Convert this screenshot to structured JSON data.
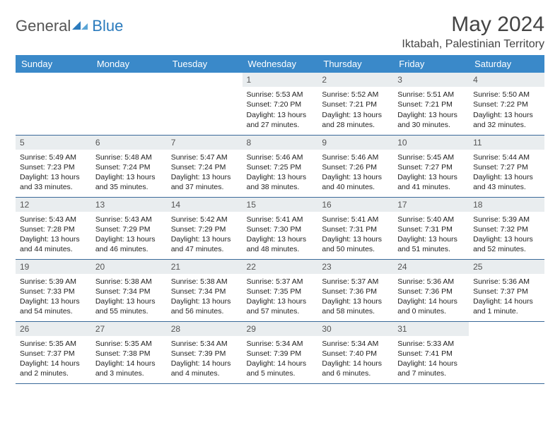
{
  "logo": {
    "general": "General",
    "blue": "Blue"
  },
  "title": "May 2024",
  "location": "Iktabah, Palestinian Territory",
  "day_headers": [
    "Sunday",
    "Monday",
    "Tuesday",
    "Wednesday",
    "Thursday",
    "Friday",
    "Saturday"
  ],
  "colors": {
    "header_bg": "#3a89c9",
    "daynum_bg": "#e9edef",
    "row_border": "#3a6a99",
    "logo_blue": "#2b7bbd",
    "logo_gray": "#555555"
  },
  "weeks": [
    [
      null,
      null,
      null,
      {
        "n": "1",
        "sr": "Sunrise: 5:53 AM",
        "ss": "Sunset: 7:20 PM",
        "d1": "Daylight: 13 hours",
        "d2": "and 27 minutes."
      },
      {
        "n": "2",
        "sr": "Sunrise: 5:52 AM",
        "ss": "Sunset: 7:21 PM",
        "d1": "Daylight: 13 hours",
        "d2": "and 28 minutes."
      },
      {
        "n": "3",
        "sr": "Sunrise: 5:51 AM",
        "ss": "Sunset: 7:21 PM",
        "d1": "Daylight: 13 hours",
        "d2": "and 30 minutes."
      },
      {
        "n": "4",
        "sr": "Sunrise: 5:50 AM",
        "ss": "Sunset: 7:22 PM",
        "d1": "Daylight: 13 hours",
        "d2": "and 32 minutes."
      }
    ],
    [
      {
        "n": "5",
        "sr": "Sunrise: 5:49 AM",
        "ss": "Sunset: 7:23 PM",
        "d1": "Daylight: 13 hours",
        "d2": "and 33 minutes."
      },
      {
        "n": "6",
        "sr": "Sunrise: 5:48 AM",
        "ss": "Sunset: 7:24 PM",
        "d1": "Daylight: 13 hours",
        "d2": "and 35 minutes."
      },
      {
        "n": "7",
        "sr": "Sunrise: 5:47 AM",
        "ss": "Sunset: 7:24 PM",
        "d1": "Daylight: 13 hours",
        "d2": "and 37 minutes."
      },
      {
        "n": "8",
        "sr": "Sunrise: 5:46 AM",
        "ss": "Sunset: 7:25 PM",
        "d1": "Daylight: 13 hours",
        "d2": "and 38 minutes."
      },
      {
        "n": "9",
        "sr": "Sunrise: 5:46 AM",
        "ss": "Sunset: 7:26 PM",
        "d1": "Daylight: 13 hours",
        "d2": "and 40 minutes."
      },
      {
        "n": "10",
        "sr": "Sunrise: 5:45 AM",
        "ss": "Sunset: 7:27 PM",
        "d1": "Daylight: 13 hours",
        "d2": "and 41 minutes."
      },
      {
        "n": "11",
        "sr": "Sunrise: 5:44 AM",
        "ss": "Sunset: 7:27 PM",
        "d1": "Daylight: 13 hours",
        "d2": "and 43 minutes."
      }
    ],
    [
      {
        "n": "12",
        "sr": "Sunrise: 5:43 AM",
        "ss": "Sunset: 7:28 PM",
        "d1": "Daylight: 13 hours",
        "d2": "and 44 minutes."
      },
      {
        "n": "13",
        "sr": "Sunrise: 5:43 AM",
        "ss": "Sunset: 7:29 PM",
        "d1": "Daylight: 13 hours",
        "d2": "and 46 minutes."
      },
      {
        "n": "14",
        "sr": "Sunrise: 5:42 AM",
        "ss": "Sunset: 7:29 PM",
        "d1": "Daylight: 13 hours",
        "d2": "and 47 minutes."
      },
      {
        "n": "15",
        "sr": "Sunrise: 5:41 AM",
        "ss": "Sunset: 7:30 PM",
        "d1": "Daylight: 13 hours",
        "d2": "and 48 minutes."
      },
      {
        "n": "16",
        "sr": "Sunrise: 5:41 AM",
        "ss": "Sunset: 7:31 PM",
        "d1": "Daylight: 13 hours",
        "d2": "and 50 minutes."
      },
      {
        "n": "17",
        "sr": "Sunrise: 5:40 AM",
        "ss": "Sunset: 7:31 PM",
        "d1": "Daylight: 13 hours",
        "d2": "and 51 minutes."
      },
      {
        "n": "18",
        "sr": "Sunrise: 5:39 AM",
        "ss": "Sunset: 7:32 PM",
        "d1": "Daylight: 13 hours",
        "d2": "and 52 minutes."
      }
    ],
    [
      {
        "n": "19",
        "sr": "Sunrise: 5:39 AM",
        "ss": "Sunset: 7:33 PM",
        "d1": "Daylight: 13 hours",
        "d2": "and 54 minutes."
      },
      {
        "n": "20",
        "sr": "Sunrise: 5:38 AM",
        "ss": "Sunset: 7:34 PM",
        "d1": "Daylight: 13 hours",
        "d2": "and 55 minutes."
      },
      {
        "n": "21",
        "sr": "Sunrise: 5:38 AM",
        "ss": "Sunset: 7:34 PM",
        "d1": "Daylight: 13 hours",
        "d2": "and 56 minutes."
      },
      {
        "n": "22",
        "sr": "Sunrise: 5:37 AM",
        "ss": "Sunset: 7:35 PM",
        "d1": "Daylight: 13 hours",
        "d2": "and 57 minutes."
      },
      {
        "n": "23",
        "sr": "Sunrise: 5:37 AM",
        "ss": "Sunset: 7:36 PM",
        "d1": "Daylight: 13 hours",
        "d2": "and 58 minutes."
      },
      {
        "n": "24",
        "sr": "Sunrise: 5:36 AM",
        "ss": "Sunset: 7:36 PM",
        "d1": "Daylight: 14 hours",
        "d2": "and 0 minutes."
      },
      {
        "n": "25",
        "sr": "Sunrise: 5:36 AM",
        "ss": "Sunset: 7:37 PM",
        "d1": "Daylight: 14 hours",
        "d2": "and 1 minute."
      }
    ],
    [
      {
        "n": "26",
        "sr": "Sunrise: 5:35 AM",
        "ss": "Sunset: 7:37 PM",
        "d1": "Daylight: 14 hours",
        "d2": "and 2 minutes."
      },
      {
        "n": "27",
        "sr": "Sunrise: 5:35 AM",
        "ss": "Sunset: 7:38 PM",
        "d1": "Daylight: 14 hours",
        "d2": "and 3 minutes."
      },
      {
        "n": "28",
        "sr": "Sunrise: 5:34 AM",
        "ss": "Sunset: 7:39 PM",
        "d1": "Daylight: 14 hours",
        "d2": "and 4 minutes."
      },
      {
        "n": "29",
        "sr": "Sunrise: 5:34 AM",
        "ss": "Sunset: 7:39 PM",
        "d1": "Daylight: 14 hours",
        "d2": "and 5 minutes."
      },
      {
        "n": "30",
        "sr": "Sunrise: 5:34 AM",
        "ss": "Sunset: 7:40 PM",
        "d1": "Daylight: 14 hours",
        "d2": "and 6 minutes."
      },
      {
        "n": "31",
        "sr": "Sunrise: 5:33 AM",
        "ss": "Sunset: 7:41 PM",
        "d1": "Daylight: 14 hours",
        "d2": "and 7 minutes."
      },
      null
    ]
  ]
}
